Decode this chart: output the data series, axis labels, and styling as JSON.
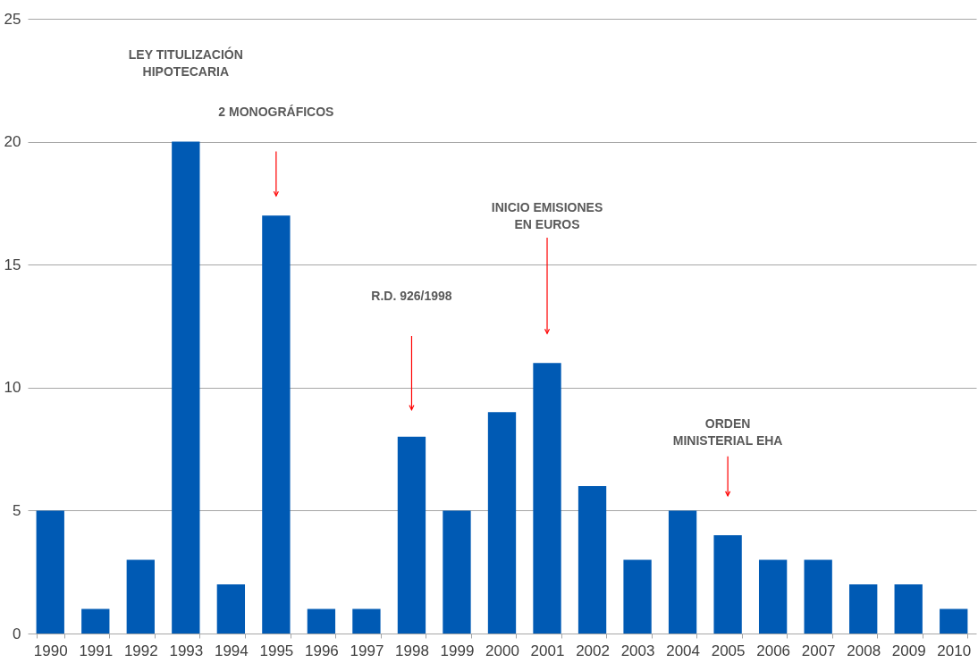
{
  "chart_data": {
    "type": "bar",
    "categories": [
      "1990",
      "1991",
      "1992",
      "1993",
      "1994",
      "1995",
      "1996",
      "1997",
      "1998",
      "1999",
      "2000",
      "2001",
      "2002",
      "2003",
      "2004",
      "2005",
      "2006",
      "2007",
      "2008",
      "2009",
      "2010"
    ],
    "values": [
      5,
      1,
      3,
      20,
      2,
      17,
      1,
      1,
      8,
      5,
      9,
      11,
      6,
      3,
      5,
      4,
      3,
      3,
      2,
      2,
      1
    ],
    "color": "#005ab4",
    "ylim": [
      0,
      25
    ],
    "yticks": [
      0,
      5,
      10,
      15,
      20,
      25
    ],
    "grid": "y",
    "annotations": [
      "LEY TITULIZACIÓN\nHIPOTECARIA",
      "2 MONOGRÁFICOS",
      "R.D. 926/1998",
      "INICIO EMISIONES\nEN EUROS",
      "ORDEN\nMINISTERIAL EHA"
    ]
  }
}
